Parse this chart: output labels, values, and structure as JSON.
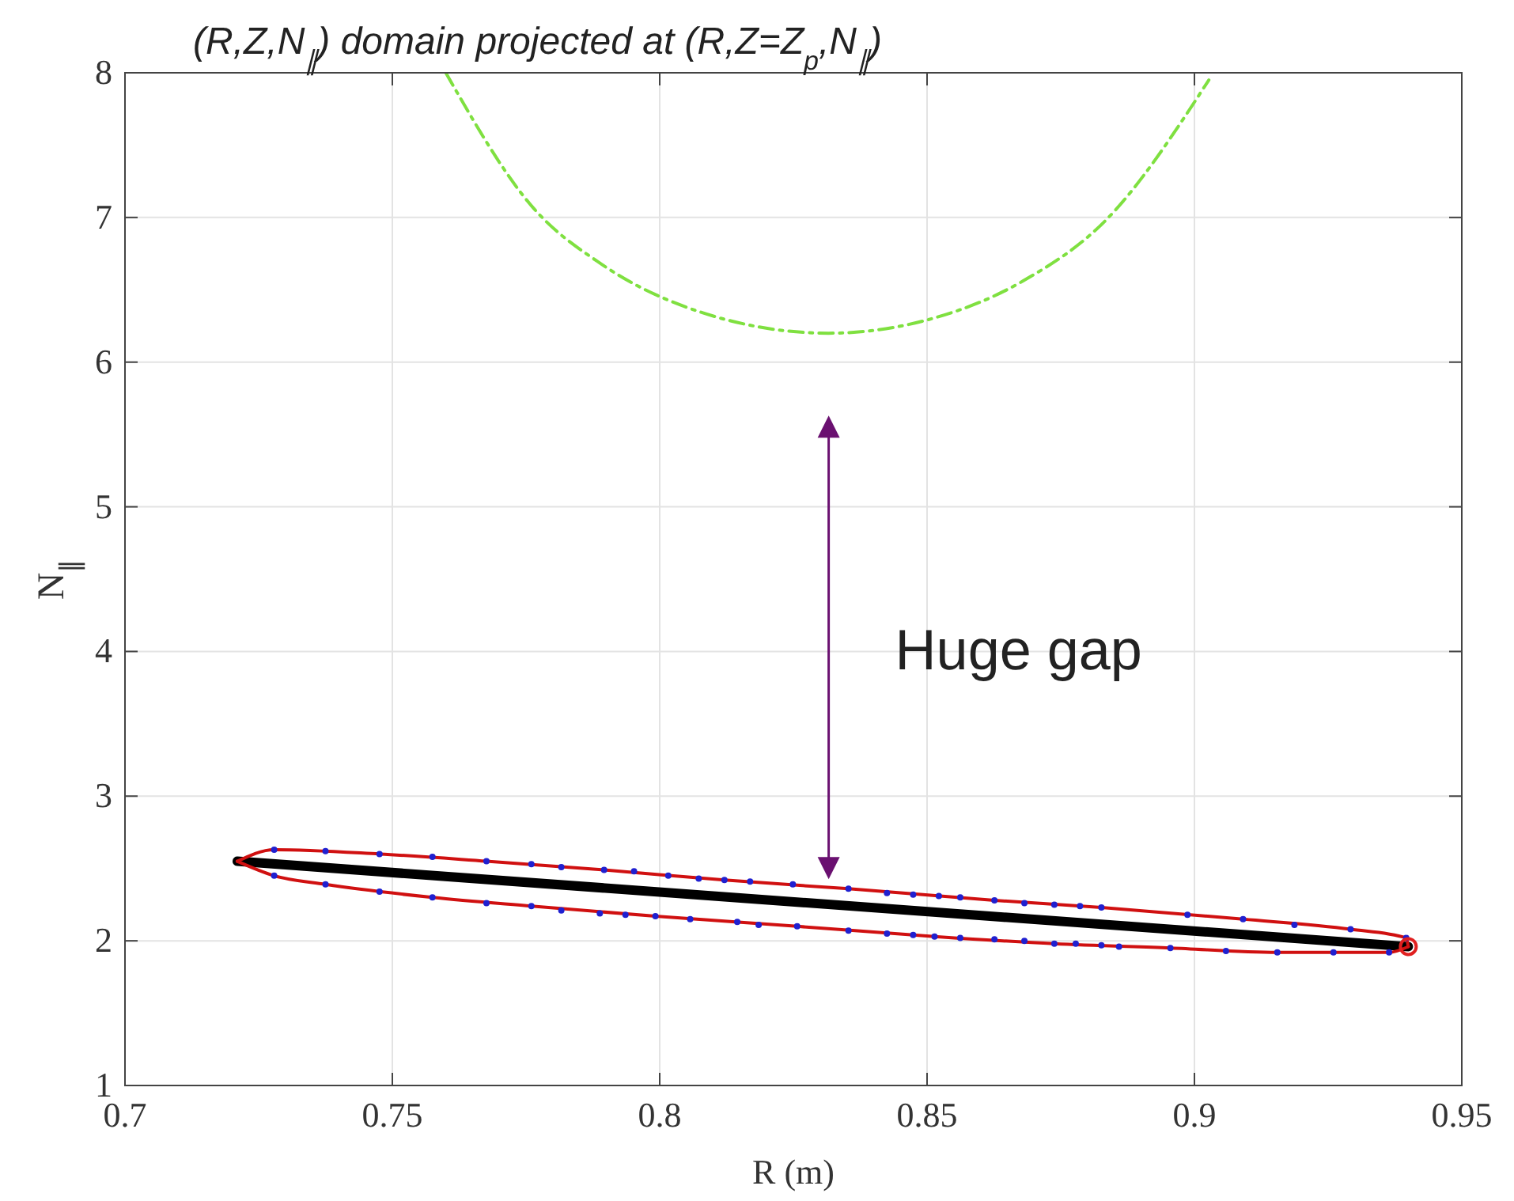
{
  "chart_data": {
    "type": "line",
    "title": "(R,Z,N$_{∥}$) domain projected at (R,Z=Z$_{p}$,N$_{∥}$)",
    "xlabel": "R (m)",
    "ylabel": "N$_{∥}$",
    "xlim": [
      0.7,
      0.95
    ],
    "xticks": [
      0.7,
      0.75,
      0.8,
      0.85,
      0.9,
      0.95
    ],
    "ylim": [
      1,
      8
    ],
    "yticks": [
      1,
      2,
      3,
      4,
      5,
      6,
      7,
      8
    ],
    "grid": true,
    "annotations": [
      "Huge gap"
    ],
    "series": [
      {
        "color": "#7fe040",
        "line_style": "dashed",
        "x": [
          0.76,
          0.7765,
          0.789,
          0.8015,
          0.8316,
          0.8518,
          0.8679,
          0.8834,
          0.9027
        ],
        "values": [
          8.0,
          7.06,
          6.68,
          6.43,
          6.2,
          6.31,
          6.56,
          6.98,
          7.95
        ]
      },
      {
        "color": "#000000",
        "line_style": "solid",
        "x": [
          0.721,
          0.94
        ],
        "values": [
          2.55,
          1.96
        ]
      },
      {
        "color": "#d01010",
        "line_style": "solid",
        "x": [
          0.721,
          0.7279,
          0.7476,
          0.7676,
          0.7896,
          0.8121,
          0.8353,
          0.8626,
          0.8826,
          0.9091,
          0.9292,
          0.9396,
          0.94
        ],
        "values": [
          2.55,
          2.63,
          2.6,
          2.55,
          2.49,
          2.42,
          2.36,
          2.28,
          2.23,
          2.15,
          2.08,
          2.02,
          1.96
        ]
      },
      {
        "color": "#d01010",
        "line_style": "solid",
        "x": [
          0.721,
          0.7279,
          0.7375,
          0.7575,
          0.776,
          0.7992,
          0.8257,
          0.8514,
          0.8738,
          0.8955,
          0.9155,
          0.9364,
          0.94
        ],
        "values": [
          2.55,
          2.45,
          2.39,
          2.3,
          2.24,
          2.17,
          2.1,
          2.03,
          1.98,
          1.95,
          1.92,
          1.92,
          1.96
        ]
      },
      {
        "type": "scatter",
        "color": "#2020d0",
        "marker": "circle",
        "x": [
          0.7279,
          0.7375,
          0.7476,
          0.7575,
          0.7676,
          0.776,
          0.7816,
          0.7896,
          0.7952,
          0.8016,
          0.8073,
          0.8121,
          0.8169,
          0.8249,
          0.8353,
          0.8425,
          0.8474,
          0.8522,
          0.8562,
          0.8626,
          0.8682,
          0.8738,
          0.8786,
          0.8826,
          0.8987,
          0.9091,
          0.9187,
          0.9292,
          0.9396,
          0.7279,
          0.7375,
          0.7476,
          0.7575,
          0.7676,
          0.776,
          0.7816,
          0.7888,
          0.7936,
          0.7992,
          0.8057,
          0.8145,
          0.8185,
          0.8257,
          0.8353,
          0.8425,
          0.8474,
          0.8514,
          0.8562,
          0.8626,
          0.8682,
          0.8738,
          0.8778,
          0.8826,
          0.8859,
          0.8955,
          0.9059,
          0.9155,
          0.926,
          0.9364
        ],
        "values": [
          2.63,
          2.62,
          2.6,
          2.58,
          2.55,
          2.53,
          2.51,
          2.49,
          2.48,
          2.45,
          2.43,
          2.42,
          2.41,
          2.39,
          2.36,
          2.33,
          2.32,
          2.31,
          2.3,
          2.28,
          2.26,
          2.25,
          2.24,
          2.23,
          2.18,
          2.15,
          2.11,
          2.08,
          2.02,
          2.45,
          2.39,
          2.34,
          2.3,
          2.26,
          2.24,
          2.21,
          2.19,
          2.18,
          2.17,
          2.15,
          2.13,
          2.11,
          2.1,
          2.07,
          2.05,
          2.04,
          2.03,
          2.02,
          2.01,
          2.0,
          1.98,
          1.98,
          1.97,
          1.96,
          1.95,
          1.93,
          1.92,
          1.92,
          1.92
        ]
      },
      {
        "type": "scatter",
        "color": "#e02020",
        "marker": "circle",
        "x": [
          0.94
        ],
        "values": [
          1.96
        ]
      }
    ]
  }
}
